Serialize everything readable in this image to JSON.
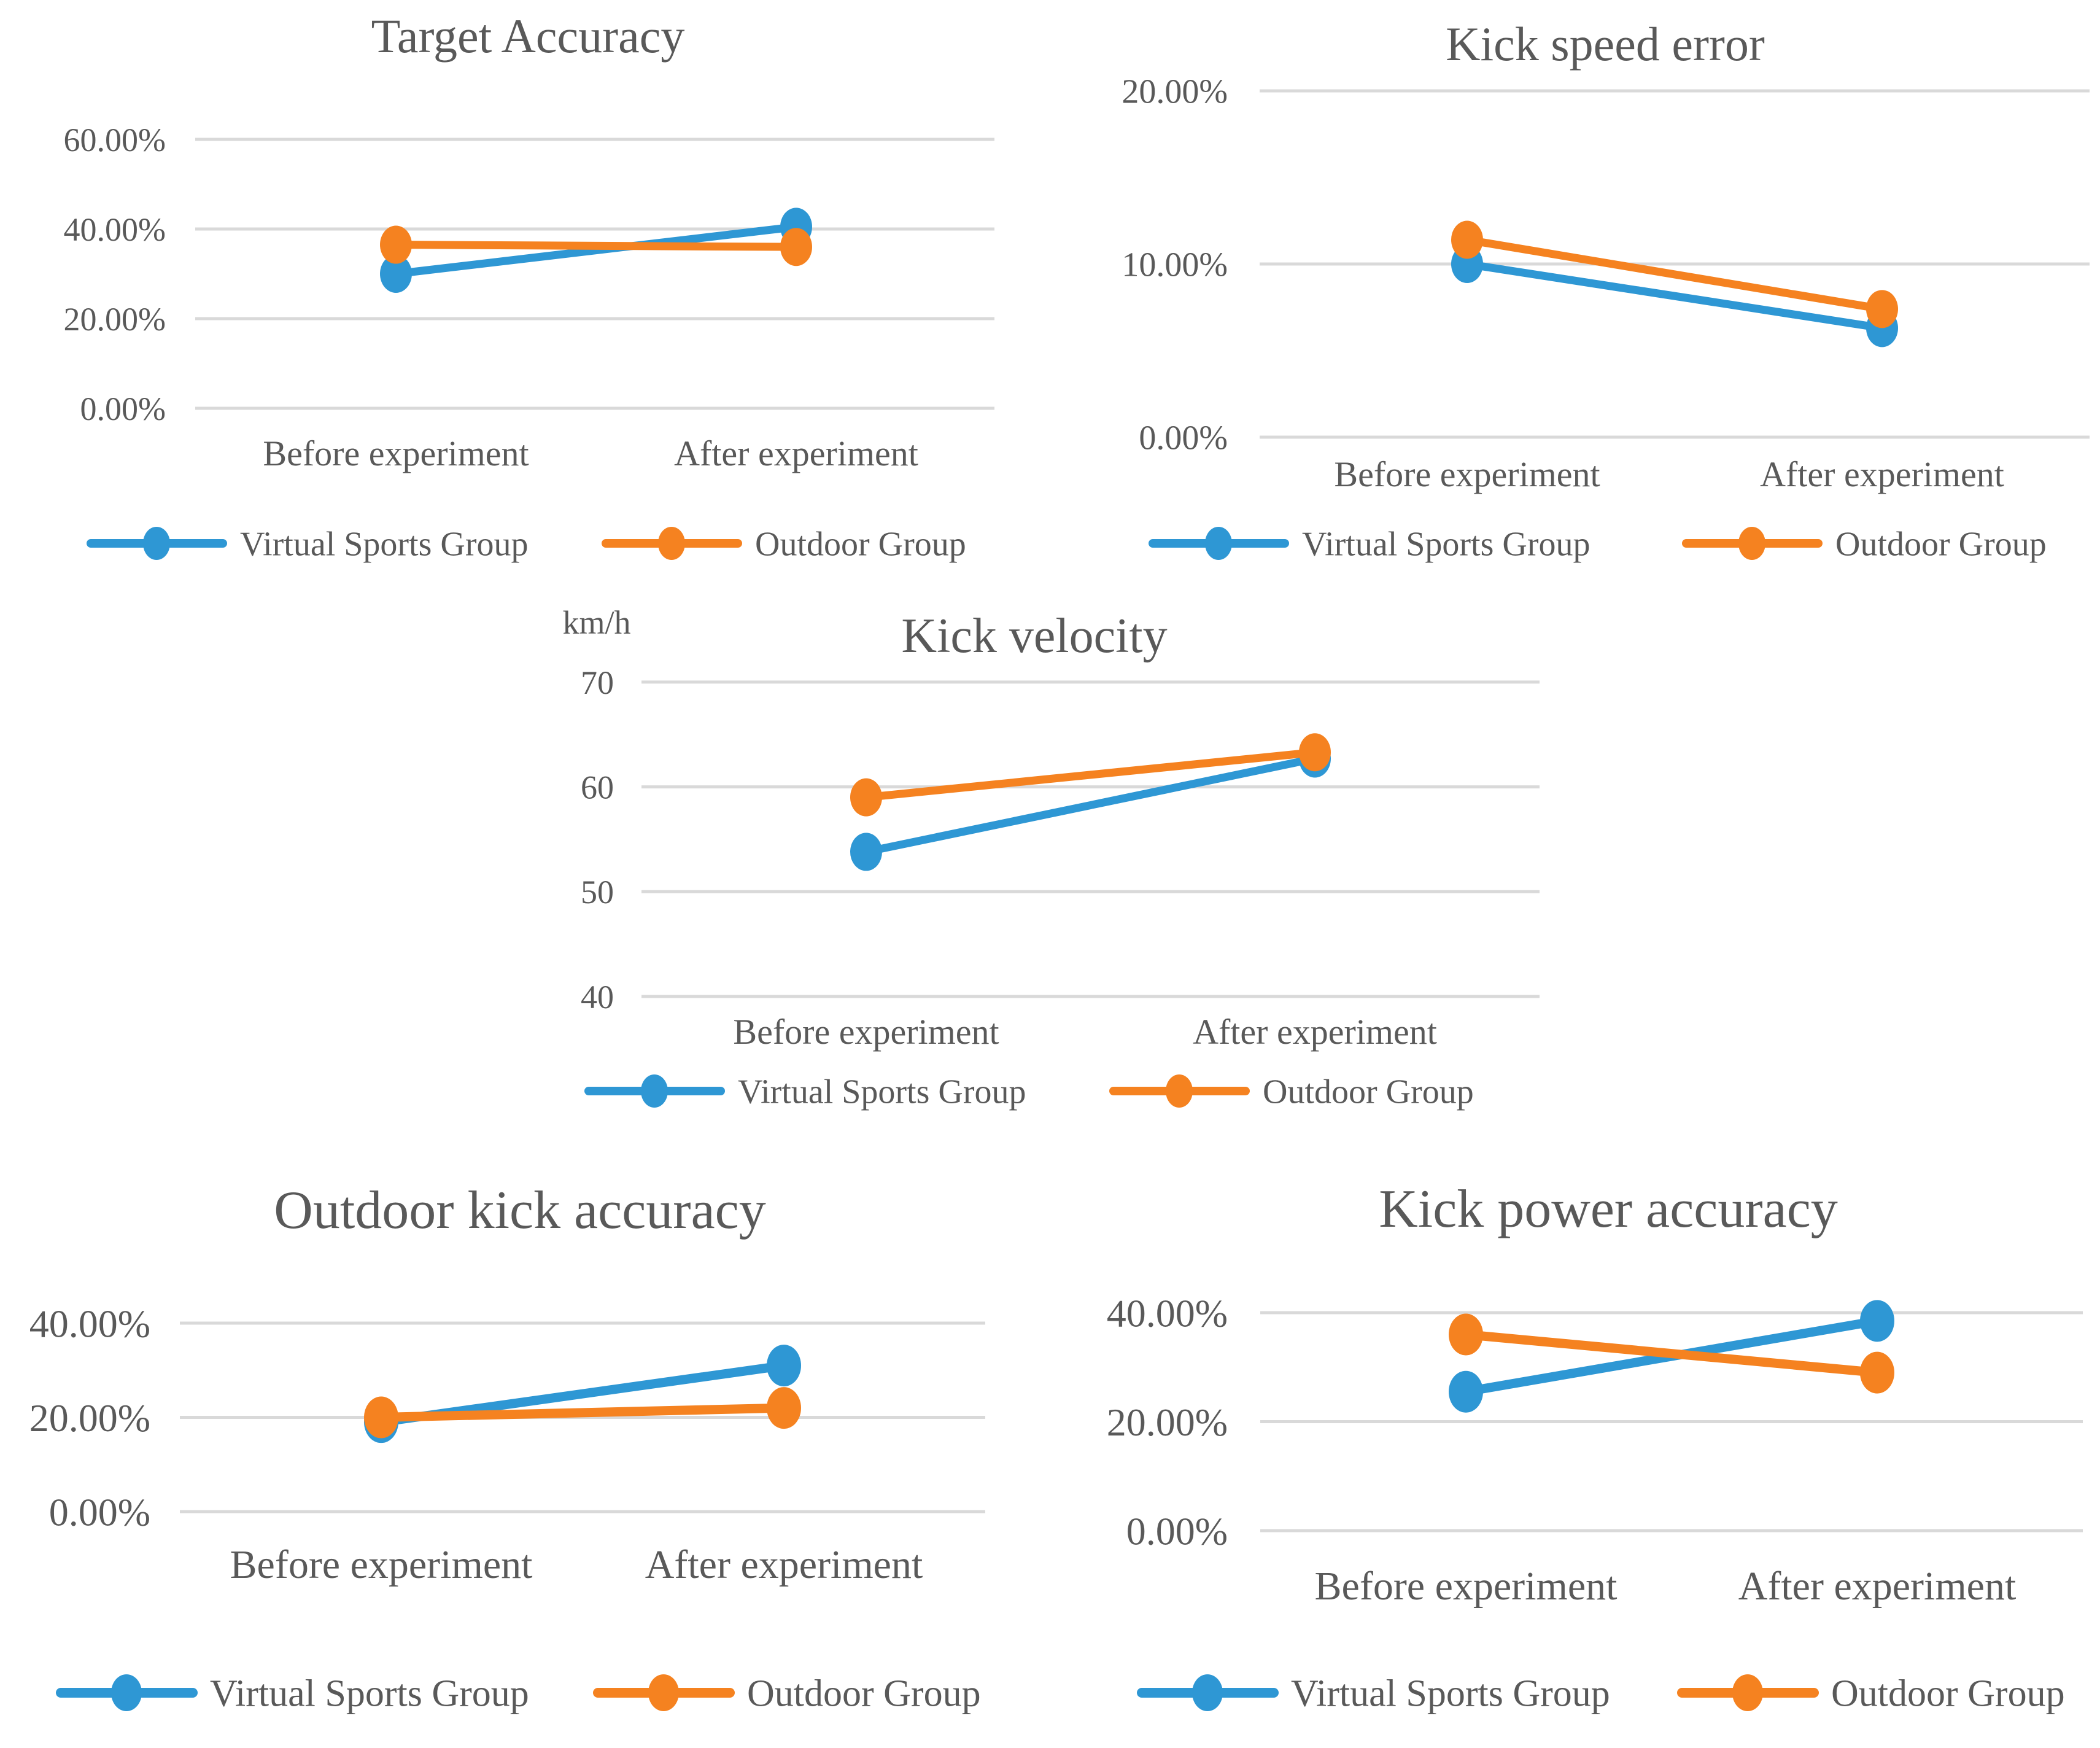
{
  "page": {
    "background": "#ffffff",
    "description_colors": {
      "series_blue": "#2E97D4",
      "series_orange": "#F58220",
      "text": "#595959",
      "gridline": "#D9D9D9"
    }
  },
  "chart_data": [
    {
      "id": "target-accuracy",
      "type": "line",
      "title": "Target Accuracy",
      "categories": [
        "Before experiment",
        "After experiment"
      ],
      "xlabel": "",
      "ylabel": "",
      "ylim": [
        0,
        60
      ],
      "grid": true,
      "legend_position": "bottom",
      "y_ticks": [
        {
          "label": "0.00%",
          "value": 0
        },
        {
          "label": "20.00%",
          "value": 20
        },
        {
          "label": "40.00%",
          "value": 40
        },
        {
          "label": "60.00%",
          "value": 60
        }
      ],
      "series": [
        {
          "name": "Virtual Sports Group",
          "color": "#2E97D4",
          "values": [
            30,
            40.5
          ]
        },
        {
          "name": "Outdoor Group",
          "color": "#F58220",
          "values": [
            36.5,
            36
          ]
        }
      ]
    },
    {
      "id": "kick-speed-error",
      "type": "line",
      "title": "Kick speed error",
      "categories": [
        "Before experiment",
        "After experiment"
      ],
      "xlabel": "",
      "ylabel": "",
      "ylim": [
        0,
        20
      ],
      "grid": true,
      "legend_position": "bottom",
      "y_ticks": [
        {
          "label": "0.00%",
          "value": 0
        },
        {
          "label": "10.00%",
          "value": 10
        },
        {
          "label": "20.00%",
          "value": 20
        }
      ],
      "series": [
        {
          "name": "Virtual Sports Group",
          "color": "#2E97D4",
          "values": [
            10,
            6.3
          ]
        },
        {
          "name": "Outdoor Group",
          "color": "#F58220",
          "values": [
            11.4,
            7.4
          ]
        }
      ]
    },
    {
      "id": "kick-velocity",
      "type": "line",
      "title": "Kick velocity",
      "unit_label": "km/h",
      "categories": [
        "Before experiment",
        "After experiment"
      ],
      "xlabel": "",
      "ylabel": "km/h",
      "ylim": [
        40,
        70
      ],
      "grid": true,
      "legend_position": "bottom",
      "y_ticks": [
        {
          "label": "40",
          "value": 40
        },
        {
          "label": "50",
          "value": 50
        },
        {
          "label": "60",
          "value": 60
        },
        {
          "label": "70",
          "value": 70
        }
      ],
      "series": [
        {
          "name": "Virtual Sports Group",
          "color": "#2E97D4",
          "values": [
            53.8,
            62.7
          ]
        },
        {
          "name": "Outdoor Group",
          "color": "#F58220",
          "values": [
            59,
            63.3
          ]
        }
      ]
    },
    {
      "id": "outdoor-kick-accuracy",
      "type": "line",
      "title": "Outdoor kick accuracy",
      "categories": [
        "Before experiment",
        "After experiment"
      ],
      "xlabel": "",
      "ylabel": "",
      "ylim": [
        0,
        40
      ],
      "grid": true,
      "legend_position": "bottom",
      "y_ticks": [
        {
          "label": "0.00%",
          "value": 0
        },
        {
          "label": "20.00%",
          "value": 20
        },
        {
          "label": "40.00%",
          "value": 40
        }
      ],
      "series": [
        {
          "name": "Virtual Sports Group",
          "color": "#2E97D4",
          "values": [
            19,
            31
          ]
        },
        {
          "name": "Outdoor Group",
          "color": "#F58220",
          "values": [
            20,
            22
          ]
        }
      ]
    },
    {
      "id": "kick-power-accuracy",
      "type": "line",
      "title": "Kick power accuracy",
      "categories": [
        "Before experiment",
        "After experiment"
      ],
      "xlabel": "",
      "ylabel": "",
      "ylim": [
        0,
        40
      ],
      "grid": true,
      "legend_position": "bottom",
      "y_ticks": [
        {
          "label": "0.00%",
          "value": 0
        },
        {
          "label": "20.00%",
          "value": 20
        },
        {
          "label": "40.00%",
          "value": 40
        }
      ],
      "series": [
        {
          "name": "Virtual Sports Group",
          "color": "#2E97D4",
          "values": [
            25.5,
            38.5
          ]
        },
        {
          "name": "Outdoor Group",
          "color": "#F58220",
          "values": [
            36,
            29
          ]
        }
      ]
    }
  ]
}
